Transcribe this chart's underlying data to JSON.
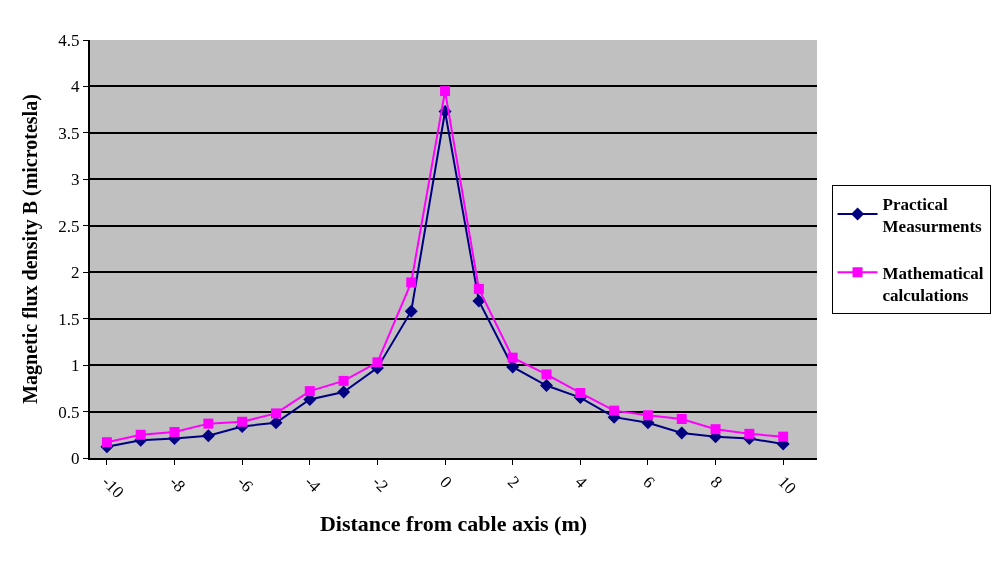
{
  "chart_data": {
    "type": "line",
    "xlabel": "Distance from cable axis (m)",
    "ylabel": "Magnetic flux density B (microtesla)",
    "x": [
      -10,
      -9,
      -8,
      -7,
      -6,
      -5,
      -4,
      -3,
      -2,
      -1,
      0,
      1,
      2,
      3,
      4,
      5,
      6,
      7,
      8,
      9,
      10
    ],
    "series": [
      {
        "name": "Practical Measurments",
        "color": "#000080",
        "marker": "diamond",
        "values": [
          0.12,
          0.19,
          0.21,
          0.24,
          0.34,
          0.38,
          0.63,
          0.71,
          0.97,
          1.58,
          3.73,
          1.69,
          0.98,
          0.78,
          0.65,
          0.44,
          0.38,
          0.27,
          0.23,
          0.21,
          0.15
        ]
      },
      {
        "name": " Mathematical calculations",
        "color": "#ff00ff",
        "marker": "square",
        "values": [
          0.17,
          0.25,
          0.28,
          0.37,
          0.39,
          0.48,
          0.72,
          0.83,
          1.03,
          1.89,
          3.95,
          1.82,
          1.08,
          0.9,
          0.7,
          0.51,
          0.46,
          0.42,
          0.31,
          0.26,
          0.23
        ]
      }
    ],
    "xlim": [
      -10.5,
      11
    ],
    "xticks": [
      -10,
      -8,
      -6,
      -4,
      -2,
      0,
      2,
      4,
      6,
      8,
      10
    ],
    "ylim": [
      0,
      4.5
    ],
    "yticks": [
      0,
      0.5,
      1,
      1.5,
      2,
      2.5,
      3,
      3.5,
      4,
      4.5
    ],
    "grid": "y",
    "legend": "right",
    "line_style": "solid"
  }
}
